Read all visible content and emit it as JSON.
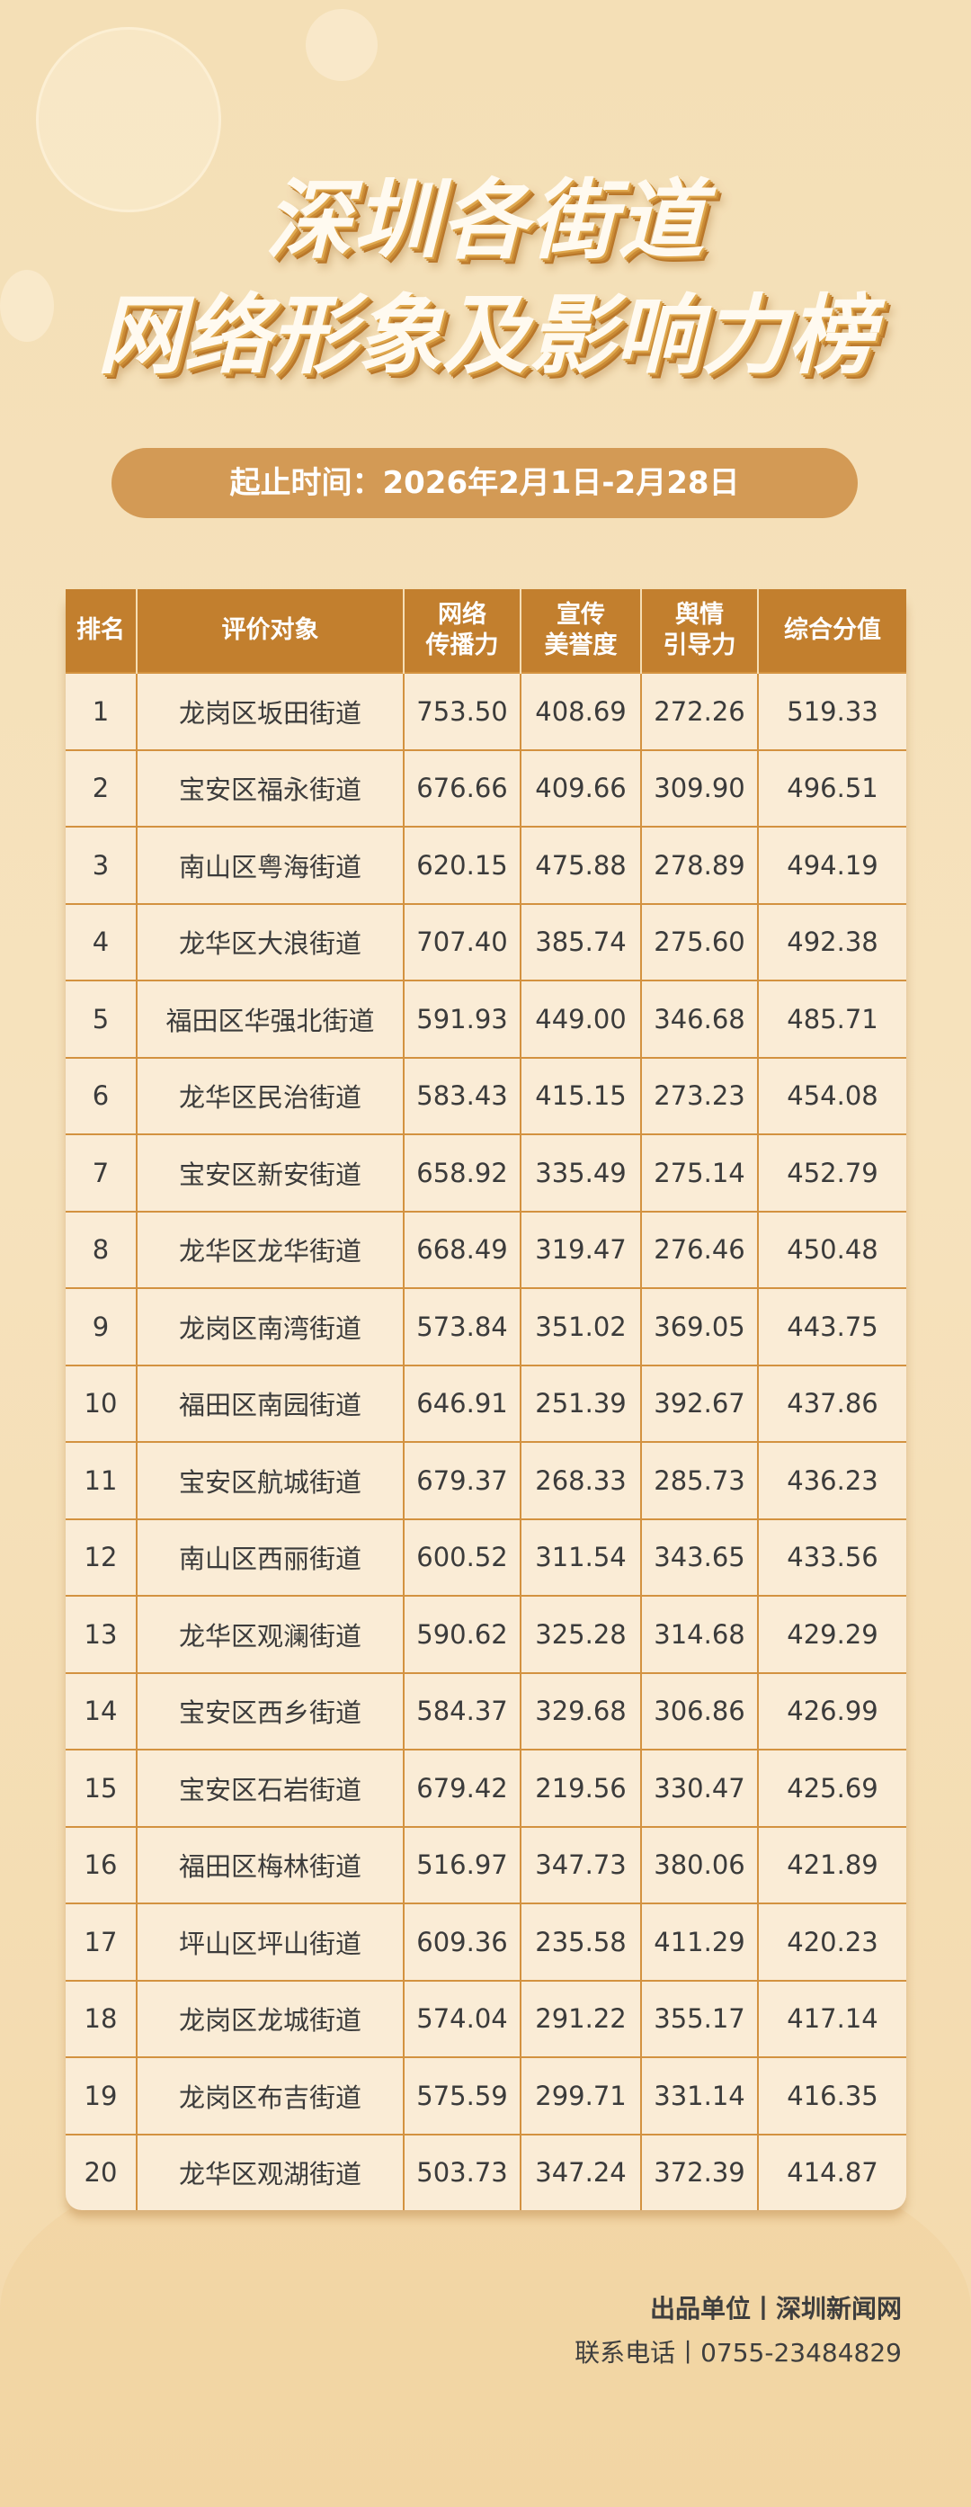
{
  "title": {
    "line1": "深圳各街道",
    "line2": "网络形象及影响力榜"
  },
  "period": "起止时间：2026年2月1日-2月28日",
  "table": {
    "headers": [
      "排名",
      "评价对象",
      "网络\n传播力",
      "宣传\n美誉度",
      "舆情\n引导力",
      "综合分值"
    ],
    "rows": [
      [
        "1",
        "龙岗区坂田街道",
        "753.50",
        "408.69",
        "272.26",
        "519.33"
      ],
      [
        "2",
        "宝安区福永街道",
        "676.66",
        "409.66",
        "309.90",
        "496.51"
      ],
      [
        "3",
        "南山区粤海街道",
        "620.15",
        "475.88",
        "278.89",
        "494.19"
      ],
      [
        "4",
        "龙华区大浪街道",
        "707.40",
        "385.74",
        "275.60",
        "492.38"
      ],
      [
        "5",
        "福田区华强北街道",
        "591.93",
        "449.00",
        "346.68",
        "485.71"
      ],
      [
        "6",
        "龙华区民治街道",
        "583.43",
        "415.15",
        "273.23",
        "454.08"
      ],
      [
        "7",
        "宝安区新安街道",
        "658.92",
        "335.49",
        "275.14",
        "452.79"
      ],
      [
        "8",
        "龙华区龙华街道",
        "668.49",
        "319.47",
        "276.46",
        "450.48"
      ],
      [
        "9",
        "龙岗区南湾街道",
        "573.84",
        "351.02",
        "369.05",
        "443.75"
      ],
      [
        "10",
        "福田区南园街道",
        "646.91",
        "251.39",
        "392.67",
        "437.86"
      ],
      [
        "11",
        "宝安区航城街道",
        "679.37",
        "268.33",
        "285.73",
        "436.23"
      ],
      [
        "12",
        "南山区西丽街道",
        "600.52",
        "311.54",
        "343.65",
        "433.56"
      ],
      [
        "13",
        "龙华区观澜街道",
        "590.62",
        "325.28",
        "314.68",
        "429.29"
      ],
      [
        "14",
        "宝安区西乡街道",
        "584.37",
        "329.68",
        "306.86",
        "426.99"
      ],
      [
        "15",
        "宝安区石岩街道",
        "679.42",
        "219.56",
        "330.47",
        "425.69"
      ],
      [
        "16",
        "福田区梅林街道",
        "516.97",
        "347.73",
        "380.06",
        "421.89"
      ],
      [
        "17",
        "坪山区坪山街道",
        "609.36",
        "235.58",
        "411.29",
        "420.23"
      ],
      [
        "18",
        "龙岗区龙城街道",
        "574.04",
        "291.22",
        "355.17",
        "417.14"
      ],
      [
        "19",
        "龙岗区布吉街道",
        "575.59",
        "299.71",
        "331.14",
        "416.35"
      ],
      [
        "20",
        "龙华区观湖街道",
        "503.73",
        "347.24",
        "372.39",
        "414.87"
      ]
    ]
  },
  "footer": {
    "producer": "出品单位丨深圳新闻网",
    "contact": "联系电话丨0755-23484829"
  },
  "colors": {
    "header": "#c27f2e",
    "pill": "#d39a55",
    "border": "#d39240",
    "cell": "#faecd6"
  }
}
